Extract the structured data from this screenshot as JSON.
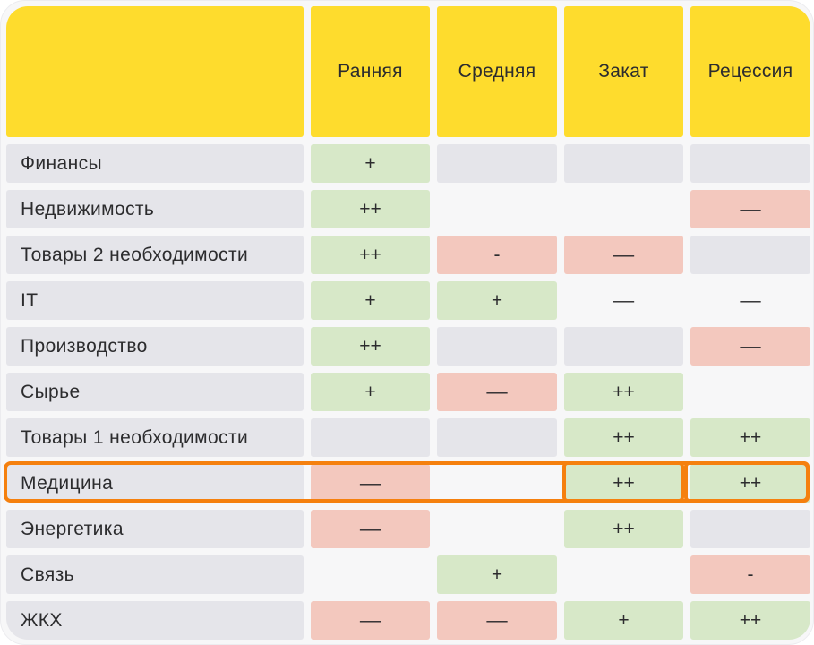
{
  "colors": {
    "header": "#fedc2d",
    "positive": "#d7e8c8",
    "negative": "#f3c8be",
    "neutral": "#e5e5ea",
    "highlight": "#f5800e"
  },
  "header": {
    "corner": "",
    "phases": [
      "Ранняя",
      "Средняя",
      "Закат",
      "Рецессия"
    ]
  },
  "rows": [
    {
      "sector": "Финансы",
      "values": [
        "+",
        "",
        "",
        ""
      ],
      "tones": [
        "pos",
        "neu",
        "neu",
        "neu"
      ]
    },
    {
      "sector": "Недвижимость",
      "values": [
        "++",
        "",
        "",
        "––"
      ],
      "tones": [
        "pos",
        "empty",
        "empty",
        "neg"
      ]
    },
    {
      "sector": "Товары 2 необходимости",
      "values": [
        "++",
        "-",
        "––",
        ""
      ],
      "tones": [
        "pos",
        "neg",
        "neg",
        "neu"
      ]
    },
    {
      "sector": "IT",
      "values": [
        "+",
        "+",
        "––",
        "––"
      ],
      "tones": [
        "pos",
        "pos",
        "empty",
        "empty"
      ]
    },
    {
      "sector": "Производство",
      "values": [
        "++",
        "",
        "",
        "––"
      ],
      "tones": [
        "pos",
        "neu",
        "neu",
        "neg"
      ]
    },
    {
      "sector": "Сырье",
      "values": [
        "+",
        "––",
        "++",
        ""
      ],
      "tones": [
        "pos",
        "neg",
        "pos",
        "empty"
      ]
    },
    {
      "sector": "Товары 1 необходимости",
      "values": [
        "",
        "",
        "++",
        "++"
      ],
      "tones": [
        "neu",
        "neu",
        "pos",
        "pos"
      ]
    },
    {
      "sector": "Медицина",
      "values": [
        "––",
        "",
        "++",
        "++"
      ],
      "tones": [
        "neg",
        "empty",
        "pos",
        "pos"
      ],
      "highlighted": true
    },
    {
      "sector": "Энергетика",
      "values": [
        "––",
        "",
        "++",
        ""
      ],
      "tones": [
        "neg",
        "empty",
        "pos",
        "neu"
      ]
    },
    {
      "sector": "Связь",
      "values": [
        "",
        "+",
        "",
        "-"
      ],
      "tones": [
        "empty",
        "pos",
        "empty",
        "neg"
      ]
    },
    {
      "sector": "ЖКХ",
      "values": [
        "––",
        "––",
        "+",
        "++"
      ],
      "tones": [
        "neg",
        "neg",
        "pos",
        "pos"
      ]
    }
  ]
}
